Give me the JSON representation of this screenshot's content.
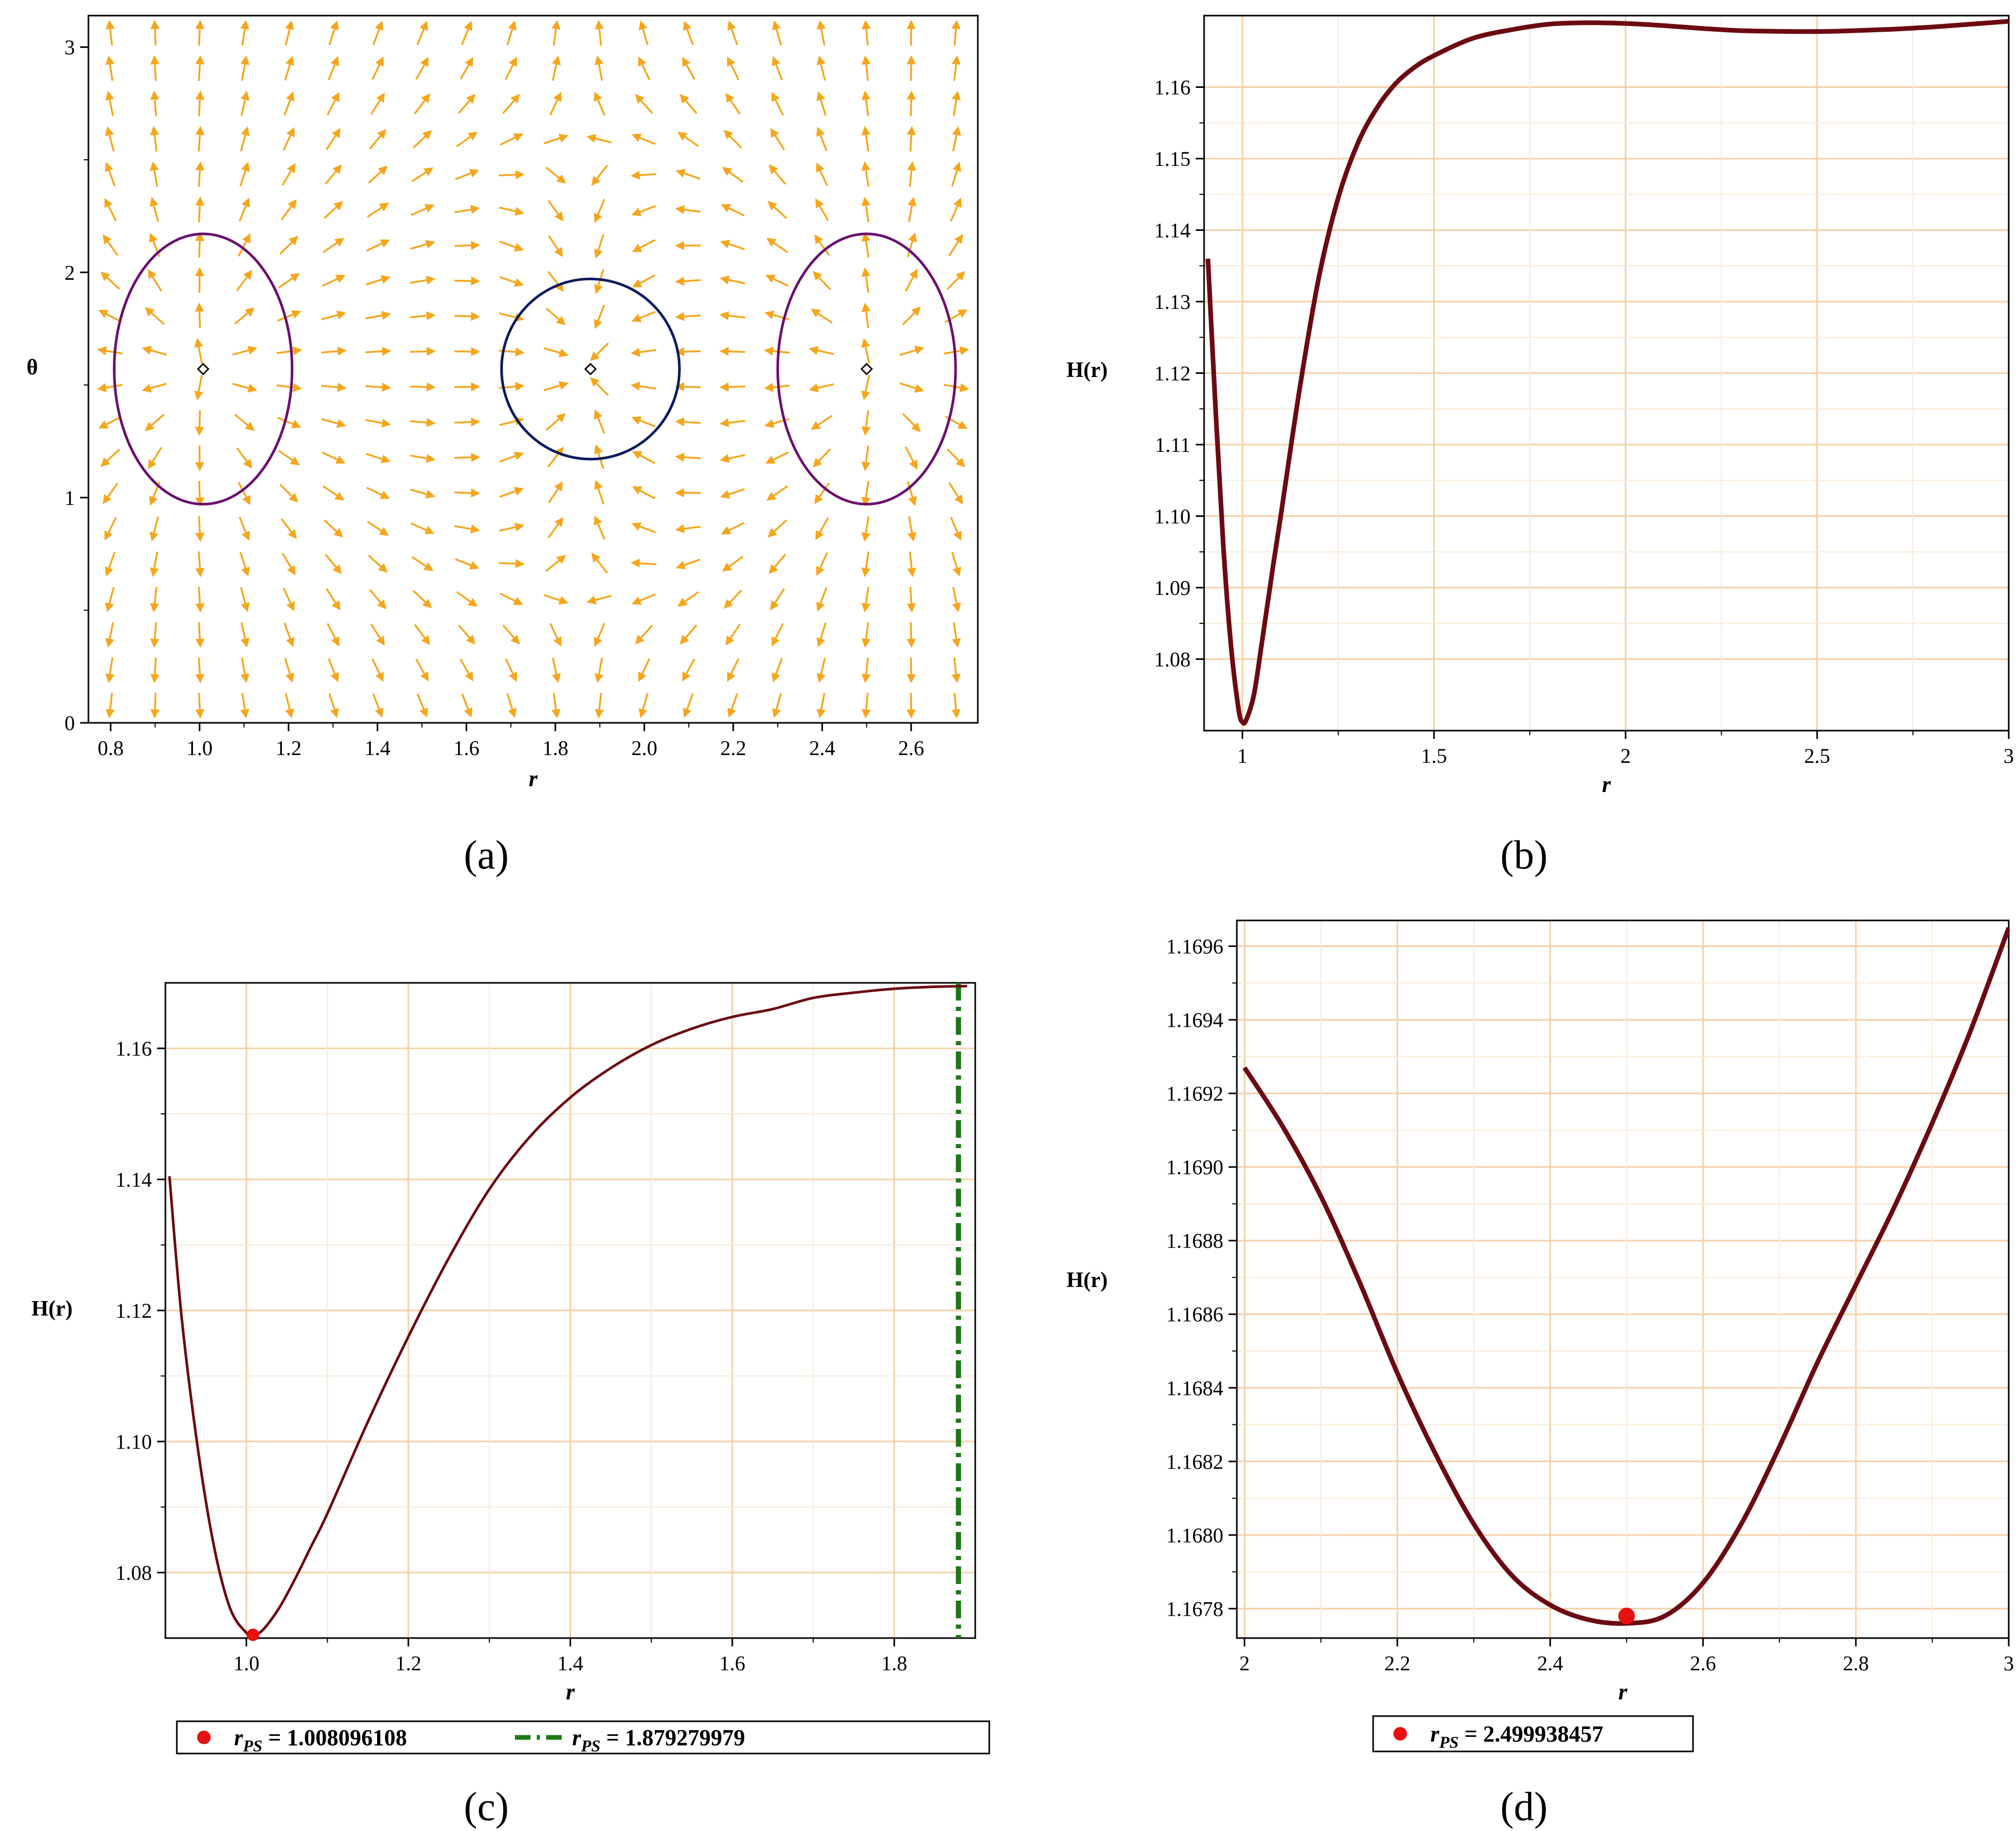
{
  "chart_data": [
    {
      "id": "a",
      "type": "vector_field",
      "caption": "(a)",
      "xlabel": "r",
      "ylabel": "θ",
      "xlim": [
        0.75,
        2.75
      ],
      "ylim": [
        0,
        3.14
      ],
      "xticks": [
        "0.8",
        "1.0",
        "1.2",
        "1.4",
        "1.6",
        "1.8",
        "2.0",
        "2.2",
        "2.4",
        "2.6"
      ],
      "xtick_values": [
        0.8,
        1.0,
        1.2,
        1.4,
        1.6,
        1.8,
        2.0,
        2.2,
        2.4,
        2.6
      ],
      "yticks": [
        "0",
        "1",
        "2",
        "3"
      ],
      "ytick_values": [
        0,
        1,
        2,
        3
      ],
      "arrow_color": "#f5a61c",
      "zero_points": [
        {
          "r": 1.008,
          "theta": 1.5708
        },
        {
          "r": 1.879,
          "theta": 1.5708
        },
        {
          "r": 2.5,
          "theta": 1.5708
        }
      ],
      "contours": [
        {
          "cx": 1.008,
          "cy": 1.5708,
          "rx": 0.2,
          "ry": 0.6,
          "color": "#6a0f6e"
        },
        {
          "cx": 1.879,
          "cy": 1.5708,
          "rx": 0.2,
          "ry": 0.4,
          "color": "#0c1a5e"
        },
        {
          "cx": 2.5,
          "cy": 1.5708,
          "rx": 0.2,
          "ry": 0.6,
          "color": "#6a0f6e"
        }
      ]
    },
    {
      "id": "b",
      "type": "line",
      "caption": "(b)",
      "xlabel": "r",
      "ylabel": "H(r)",
      "xlim": [
        0.9,
        3.0
      ],
      "ylim": [
        1.07,
        1.17
      ],
      "xticks": [
        "1",
        "1.5",
        "2",
        "2.5",
        "3"
      ],
      "xtick_values": [
        1,
        1.5,
        2,
        2.5,
        3
      ],
      "yticks": [
        "1.08",
        "1.09",
        "1.10",
        "1.11",
        "1.12",
        "1.13",
        "1.14",
        "1.15",
        "1.16"
      ],
      "ytick_values": [
        1.08,
        1.09,
        1.1,
        1.11,
        1.12,
        1.13,
        1.14,
        1.15,
        1.16
      ],
      "grid": true,
      "line_color": "#6b0a12",
      "series": [
        {
          "x": [
            0.91,
            0.93,
            0.95,
            0.97,
            0.99,
            1.0,
            1.01,
            1.03,
            1.05,
            1.08,
            1.1,
            1.15,
            1.2,
            1.25,
            1.3,
            1.35,
            1.4,
            1.45,
            1.5,
            1.6,
            1.7,
            1.8,
            1.9,
            2.0,
            2.1,
            2.2,
            2.3,
            2.4,
            2.5,
            2.6,
            2.7,
            2.8,
            2.9,
            3.0
          ],
          "y": [
            1.136,
            1.115,
            1.096,
            1.082,
            1.073,
            1.0712,
            1.0715,
            1.075,
            1.082,
            1.093,
            1.1,
            1.118,
            1.1335,
            1.1445,
            1.152,
            1.157,
            1.1605,
            1.1628,
            1.1644,
            1.1668,
            1.168,
            1.1688,
            1.169,
            1.1689,
            1.1686,
            1.1682,
            1.1679,
            1.1678,
            1.16777,
            1.1679,
            1.1681,
            1.1684,
            1.1688,
            1.1692
          ]
        }
      ]
    },
    {
      "id": "c",
      "type": "line",
      "caption": "(c)",
      "xlabel": "r",
      "ylabel": "H(r)",
      "xlim": [
        0.9,
        1.9
      ],
      "ylim": [
        1.07,
        1.17
      ],
      "xticks": [
        "1.0",
        "1.2",
        "1.4",
        "1.6",
        "1.8"
      ],
      "xtick_values": [
        1.0,
        1.2,
        1.4,
        1.6,
        1.8
      ],
      "yticks": [
        "1.08",
        "1.10",
        "1.12",
        "1.14",
        "1.16"
      ],
      "ytick_values": [
        1.08,
        1.1,
        1.12,
        1.14,
        1.16
      ],
      "grid": true,
      "line_color": "#6b0a12",
      "series": [
        {
          "x": [
            0.905,
            0.92,
            0.94,
            0.96,
            0.98,
            1.0,
            1.008,
            1.02,
            1.04,
            1.06,
            1.08,
            1.1,
            1.15,
            1.2,
            1.25,
            1.3,
            1.35,
            1.4,
            1.45,
            1.5,
            1.55,
            1.6,
            1.65,
            1.7,
            1.75,
            1.8,
            1.85,
            1.89
          ],
          "y": [
            1.1405,
            1.119,
            1.099,
            1.084,
            1.0745,
            1.0708,
            1.0705,
            1.0712,
            1.0745,
            1.079,
            1.084,
            1.089,
            1.103,
            1.116,
            1.128,
            1.1385,
            1.1465,
            1.1525,
            1.157,
            1.1605,
            1.163,
            1.1648,
            1.166,
            1.1677,
            1.1685,
            1.1691,
            1.1694,
            1.1695
          ]
        }
      ],
      "markers": [
        {
          "x": 1.008096108,
          "y": 1.0705,
          "color": "#e81010"
        }
      ],
      "vlines": [
        {
          "x": 1.879279979,
          "color": "#1b7a16",
          "style": "dashdot"
        }
      ],
      "legend": {
        "placement": "bottom",
        "entries": [
          {
            "symbol": "dot",
            "color": "#e81010",
            "label_main": "r",
            "label_sub": "PS",
            "label_value": " = 1.008096108"
          },
          {
            "symbol": "dashdot",
            "color": "#1b7a16",
            "label_main": "r",
            "label_sub": "PS",
            "label_value": " = 1.879279979"
          }
        ]
      }
    },
    {
      "id": "d",
      "type": "line",
      "caption": "(d)",
      "xlabel": "r",
      "ylabel": "H(r)",
      "xlim": [
        1.99,
        3.0
      ],
      "ylim": [
        1.16772,
        1.16967
      ],
      "xticks": [
        "2",
        "2.2",
        "2.4",
        "2.6",
        "2.8",
        "3"
      ],
      "xtick_values": [
        2,
        2.2,
        2.4,
        2.6,
        2.8,
        3
      ],
      "yticks": [
        "1.1678",
        "1.1680",
        "1.1682",
        "1.1684",
        "1.1686",
        "1.1688",
        "1.1690",
        "1.1692",
        "1.1694",
        "1.1696"
      ],
      "ytick_values": [
        1.1678,
        1.168,
        1.1682,
        1.1684,
        1.1686,
        1.1688,
        1.169,
        1.1692,
        1.1694,
        1.1696
      ],
      "grid": true,
      "line_color": "#6b0a12",
      "series": [
        {
          "x": [
            2.0,
            2.05,
            2.1,
            2.15,
            2.2,
            2.25,
            2.3,
            2.35,
            2.4,
            2.45,
            2.5,
            2.55,
            2.6,
            2.65,
            2.7,
            2.75,
            2.8,
            2.85,
            2.9,
            2.95,
            3.0
          ],
          "y": [
            1.16927,
            1.16911,
            1.16892,
            1.16869,
            1.16844,
            1.16822,
            1.16803,
            1.16789,
            1.16781,
            1.16777,
            1.16776,
            1.16778,
            1.16787,
            1.16803,
            1.16824,
            1.16847,
            1.16868,
            1.16889,
            1.16912,
            1.16937,
            1.16965
          ]
        }
      ],
      "markers": [
        {
          "x": 2.499938457,
          "y": 1.16778,
          "color": "#e81010"
        }
      ],
      "legend": {
        "placement": "bottom",
        "entries": [
          {
            "symbol": "dot",
            "color": "#e81010",
            "label_main": "r",
            "label_sub": "PS",
            "label_value": " = 2.499938457"
          }
        ]
      }
    }
  ]
}
